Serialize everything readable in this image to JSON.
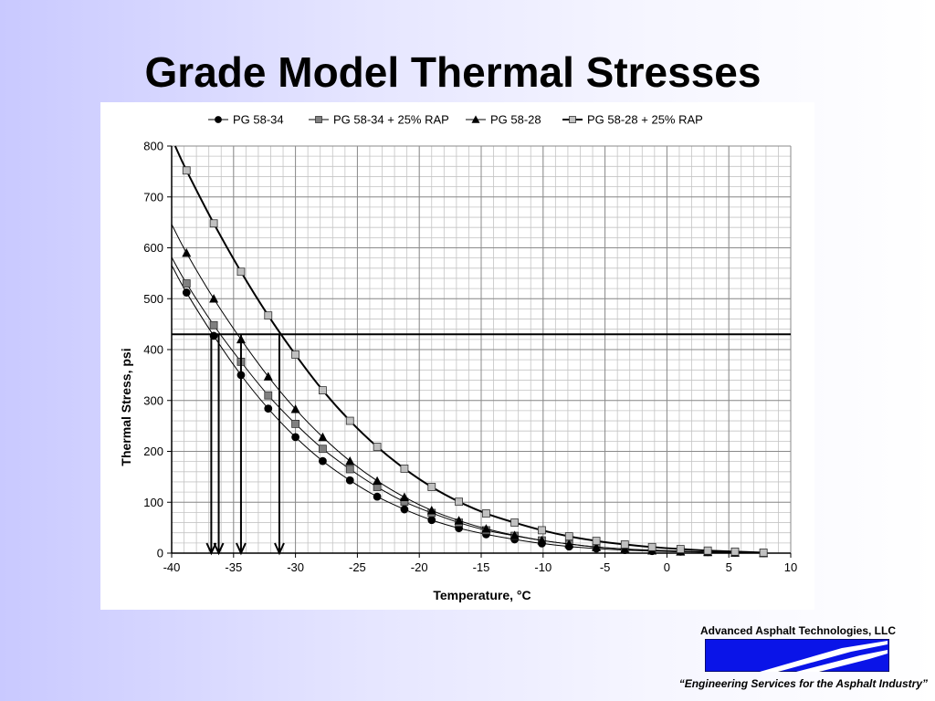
{
  "slide": {
    "title": "Grade Model Thermal Stresses",
    "footer_company": "Advanced Asphalt Technologies, LLC",
    "footer_tagline": "“Engineering Services for the Asphalt Industry”",
    "logo_colors": {
      "blue": "#0a14e8",
      "stripe": "#ffffff",
      "edge": "#000000"
    }
  },
  "chart_data": {
    "type": "line",
    "title": "",
    "xlabel": "Temperature, °C",
    "ylabel": "Thermal Stress, psi",
    "xlim": [
      -40,
      10
    ],
    "ylim": [
      0,
      800
    ],
    "xticks": [
      -40,
      -35,
      -30,
      -25,
      -20,
      -15,
      -10,
      -5,
      0,
      5,
      10
    ],
    "yticks": [
      0,
      100,
      200,
      300,
      400,
      500,
      600,
      700,
      800
    ],
    "x_minor_step": 1,
    "y_minor_step": 20,
    "grid": true,
    "legend_position": "top",
    "threshold_line": {
      "y": 430
    },
    "arrows": [
      {
        "x": -36.8,
        "from_y": 430,
        "to_y": 0
      },
      {
        "x": -36.2,
        "from_y": 430,
        "to_y": 0
      },
      {
        "x": -34.4,
        "from_y": 430,
        "to_y": 0
      },
      {
        "x": -31.3,
        "from_y": 430,
        "to_y": 0
      }
    ],
    "series": [
      {
        "name": "PG 58-34",
        "marker": "circle",
        "marker_fill": "#000000",
        "line_width": 1,
        "x": [
          -38.8,
          -36.6,
          -34.4,
          -32.2,
          -30.0,
          -27.8,
          -25.6,
          -23.4,
          -21.2,
          -19.0,
          -16.8,
          -14.6,
          -12.3,
          -10.1,
          -7.9,
          -5.7,
          -3.4,
          -1.2,
          1.1,
          3.3,
          5.5,
          7.8
        ],
        "y": [
          512,
          427,
          350,
          284,
          228,
          181,
          143,
          111,
          86,
          65,
          49,
          37,
          27,
          19,
          13,
          9,
          6,
          4,
          3,
          2,
          1,
          0
        ]
      },
      {
        "name": "PG 58-34 + 25% RAP",
        "marker": "square",
        "marker_fill": "#808080",
        "line_width": 1,
        "x": [
          -38.8,
          -36.6,
          -34.4,
          -32.2,
          -30.0,
          -27.8,
          -25.6,
          -23.4,
          -21.2,
          -19.0,
          -16.8,
          -14.6,
          -12.3,
          -10.1,
          -7.9,
          -5.7,
          -3.4,
          -1.2,
          1.1,
          3.3,
          5.5,
          7.8
        ],
        "y": [
          530,
          448,
          376,
          310,
          254,
          205,
          165,
          130,
          101,
          79,
          60,
          45,
          34,
          25,
          18,
          12,
          8,
          6,
          4,
          2,
          1,
          0
        ]
      },
      {
        "name": "PG 58-28",
        "marker": "triangle",
        "marker_fill": "#000000",
        "line_width": 1,
        "x": [
          -38.8,
          -36.6,
          -34.4,
          -32.2,
          -30.0,
          -27.8,
          -25.6,
          -23.4,
          -21.2,
          -19.0,
          -16.8,
          -14.6,
          -12.3,
          -10.1,
          -7.9,
          -5.7,
          -3.4,
          -1.2,
          1.1,
          3.3,
          5.5,
          7.8
        ],
        "y": [
          590,
          500,
          420,
          347,
          283,
          228,
          181,
          142,
          110,
          84,
          64,
          48,
          35,
          25,
          18,
          12,
          8,
          5,
          3,
          2,
          1,
          0
        ]
      },
      {
        "name": "PG 58-28 + 25% RAP",
        "marker": "square",
        "marker_fill": "#c0c0c0",
        "line_width": 2,
        "x": [
          -38.8,
          -36.6,
          -34.4,
          -32.2,
          -30.0,
          -27.8,
          -25.6,
          -23.4,
          -21.2,
          -19.0,
          -16.8,
          -14.6,
          -12.3,
          -10.1,
          -7.9,
          -5.7,
          -3.4,
          -1.2,
          1.1,
          3.3,
          5.5,
          7.8
        ],
        "y": [
          752,
          648,
          553,
          467,
          390,
          320,
          260,
          209,
          166,
          130,
          101,
          78,
          60,
          45,
          33,
          24,
          17,
          12,
          8,
          5,
          3,
          1
        ]
      }
    ]
  }
}
